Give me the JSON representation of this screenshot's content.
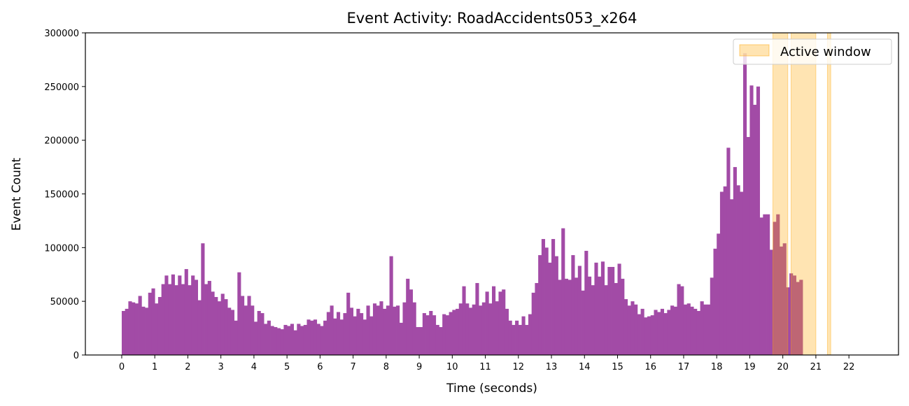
{
  "chart_data": {
    "type": "bar",
    "title": "Event Activity: RoadAccidents053_x264",
    "xlabel": "Time (seconds)",
    "ylabel": "Event Count",
    "xlim": [
      -1.1,
      23.5
    ],
    "ylim": [
      0,
      300000
    ],
    "x_ticks": [
      "0",
      "1",
      "2",
      "3",
      "4",
      "5",
      "6",
      "7",
      "8",
      "9",
      "10",
      "11",
      "12",
      "13",
      "14",
      "15",
      "16",
      "17",
      "18",
      "19",
      "20",
      "21",
      "22"
    ],
    "y_ticks": [
      "0",
      "50000",
      "100000",
      "150000",
      "200000",
      "250000",
      "300000"
    ],
    "bin_width": 0.1,
    "x_start": 0,
    "series": [
      {
        "color": "#a24ba6",
        "values": [
          41000,
          43000,
          50000,
          49000,
          48000,
          55000,
          45000,
          44000,
          58000,
          62000,
          48000,
          54000,
          66000,
          74000,
          66000,
          75000,
          65000,
          74000,
          66000,
          80000,
          65000,
          74000,
          70000,
          51000,
          104000,
          66000,
          69000,
          59000,
          54000,
          50000,
          57000,
          52000,
          44000,
          42000,
          32000,
          77000,
          55000,
          46000,
          55000,
          46000,
          31000,
          41000,
          39000,
          29000,
          32000,
          27000,
          26000,
          25000,
          24000,
          28000,
          27000,
          29000,
          23000,
          29000,
          27000,
          28000,
          33000,
          32000,
          33000,
          29000,
          27000,
          32000,
          40000,
          46000,
          34000,
          40000,
          33000,
          39000,
          58000,
          44000,
          36000,
          43000,
          39000,
          33000,
          46000,
          36000,
          48000,
          46000,
          50000,
          43000,
          46000,
          92000,
          45000,
          46000,
          30000,
          49000,
          71000,
          61000,
          49000,
          26000,
          26000,
          39000,
          37000,
          41000,
          37000,
          28000,
          26000,
          38000,
          37000,
          40000,
          42000,
          43000,
          48000,
          64000,
          48000,
          44000,
          47000,
          67000,
          46000,
          49000,
          59000,
          48000,
          64000,
          50000,
          59000,
          61000,
          43000,
          32000,
          28000,
          32000,
          28000,
          36000,
          28000,
          38000,
          58000,
          67000,
          93000,
          108000,
          100000,
          86000,
          108000,
          92000,
          70000,
          118000,
          71000,
          70000,
          93000,
          72000,
          83000,
          60000,
          97000,
          73000,
          65000,
          86000,
          73000,
          87000,
          65000,
          82000,
          82000,
          67000,
          85000,
          71000,
          52000,
          46000,
          50000,
          47000,
          38000,
          43000,
          35000,
          36000,
          37000,
          42000,
          40000,
          43000,
          39000,
          42000,
          46000,
          45000,
          66000,
          64000,
          47000,
          48000,
          45000,
          43000,
          41000,
          50000,
          47000,
          47000,
          72000,
          99000,
          113000,
          152000,
          157000,
          193000,
          145000,
          175000,
          158000,
          152000,
          281000,
          203000,
          251000,
          233000,
          250000,
          128000,
          131000,
          131000,
          98000,
          124000,
          131000,
          101000,
          104000,
          63000,
          76000,
          74000,
          68000,
          70000
        ]
      }
    ],
    "legend": {
      "position": "top-right",
      "label": "Active window",
      "color": "#ffa500"
    },
    "active_windows": [
      [
        19.7,
        20.15
      ],
      [
        20.25,
        21.0
      ],
      [
        21.35,
        21.45
      ]
    ]
  }
}
